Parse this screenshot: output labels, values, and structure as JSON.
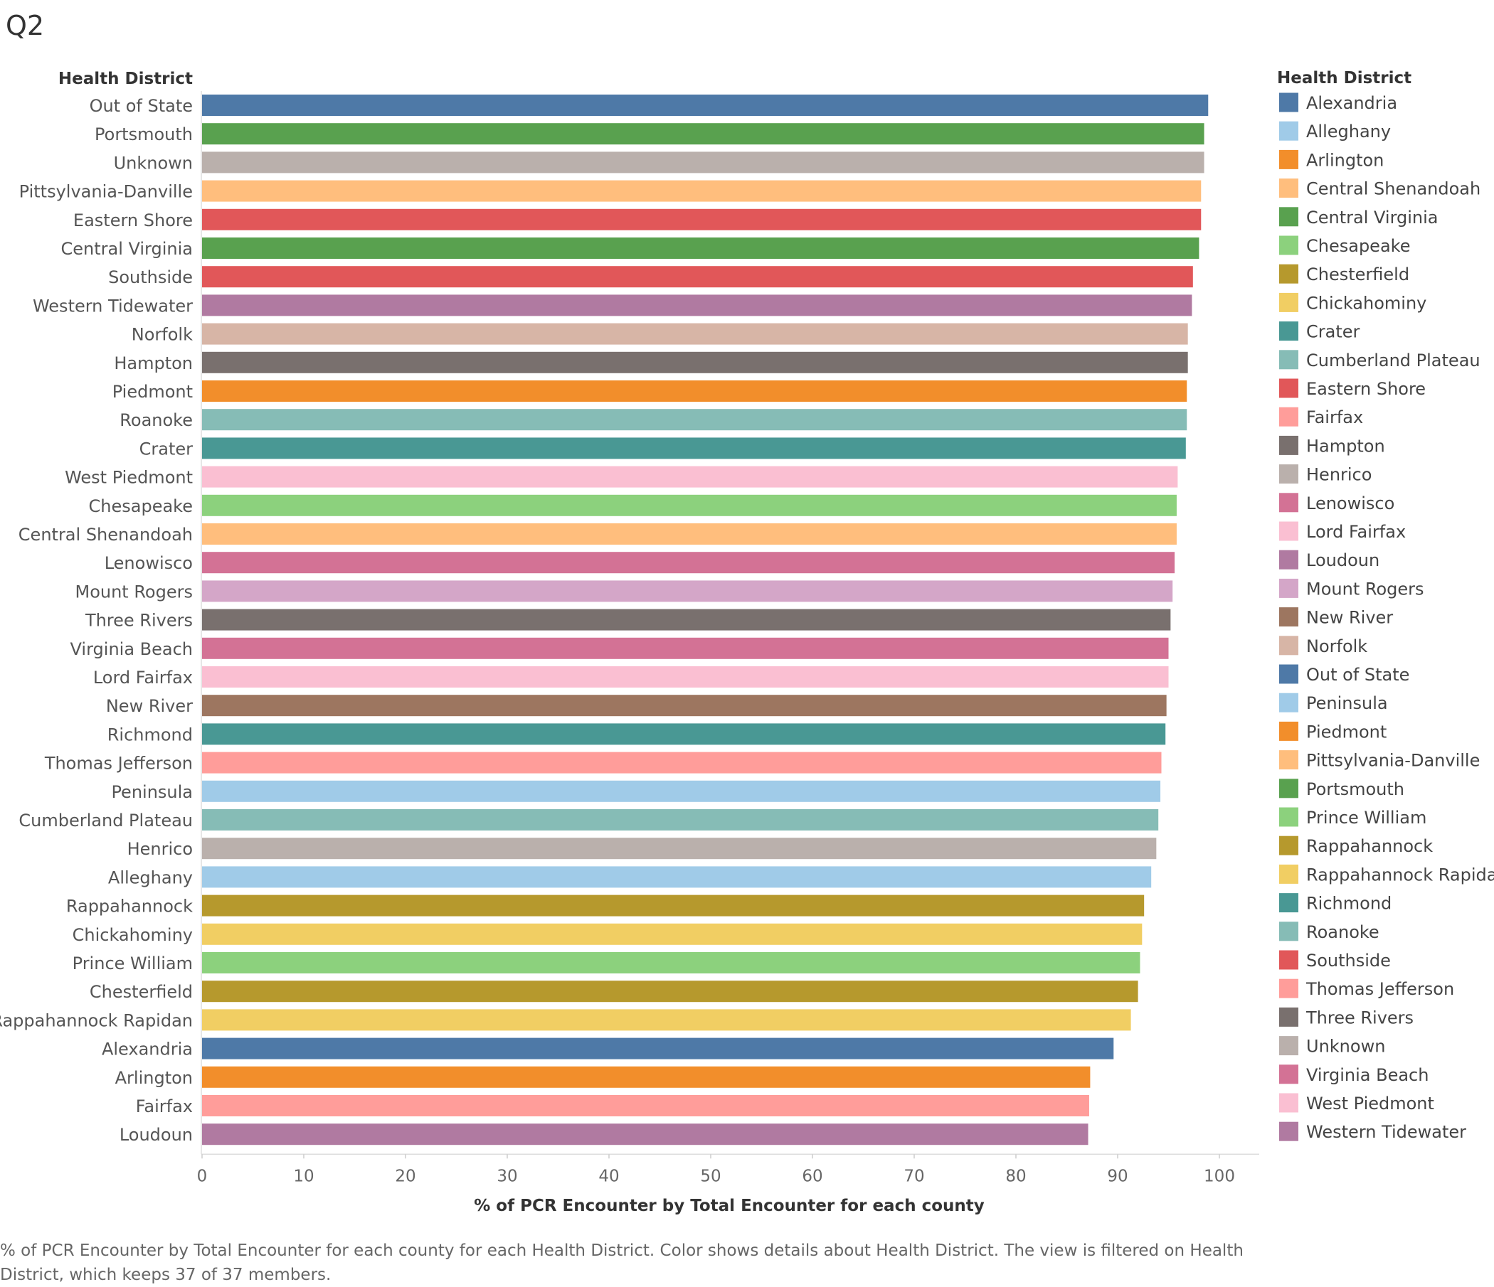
{
  "sheet": {
    "title": "Q2",
    "caption": "% of PCR Encounter by Total Encounter for each county for each Health District.  Color shows details about Health District. The view is filtered on Health District, which keeps 37 of 37 members."
  },
  "legend": {
    "title": "Health District",
    "items": [
      {
        "label": "Alexandria",
        "color": "#4e79a7"
      },
      {
        "label": "Alleghany",
        "color": "#a0cbe8"
      },
      {
        "label": "Arlington",
        "color": "#f28e2b"
      },
      {
        "label": "Central Shenandoah",
        "color": "#ffbe7d"
      },
      {
        "label": "Central Virginia",
        "color": "#59a14f"
      },
      {
        "label": "Chesapeake",
        "color": "#8cd17d"
      },
      {
        "label": "Chesterfield",
        "color": "#b6992d"
      },
      {
        "label": "Chickahominy",
        "color": "#f1ce63"
      },
      {
        "label": "Crater",
        "color": "#499894"
      },
      {
        "label": "Cumberland Plateau",
        "color": "#86bcb6"
      },
      {
        "label": "Eastern Shore",
        "color": "#e15759"
      },
      {
        "label": "Fairfax",
        "color": "#ff9d9a"
      },
      {
        "label": "Hampton",
        "color": "#79706e"
      },
      {
        "label": "Henrico",
        "color": "#bab0ac"
      },
      {
        "label": "Lenowisco",
        "color": "#d37295"
      },
      {
        "label": "Lord Fairfax",
        "color": "#fabfd2"
      },
      {
        "label": "Loudoun",
        "color": "#b07aa1"
      },
      {
        "label": "Mount Rogers",
        "color": "#d4a6c8"
      },
      {
        "label": "New River",
        "color": "#9d7660"
      },
      {
        "label": "Norfolk",
        "color": "#d7b5a6"
      },
      {
        "label": "Out of State",
        "color": "#4e79a7"
      },
      {
        "label": "Peninsula",
        "color": "#a0cbe8"
      },
      {
        "label": "Piedmont",
        "color": "#f28e2b"
      },
      {
        "label": "Pittsylvania-Danville",
        "color": "#ffbe7d"
      },
      {
        "label": "Portsmouth",
        "color": "#59a14f"
      },
      {
        "label": "Prince William",
        "color": "#8cd17d"
      },
      {
        "label": "Rappahannock",
        "color": "#b6992d"
      },
      {
        "label": "Rappahannock Rapidan",
        "color": "#f1ce63"
      },
      {
        "label": "Richmond",
        "color": "#499894"
      },
      {
        "label": "Roanoke",
        "color": "#86bcb6"
      },
      {
        "label": "Southside",
        "color": "#e15759"
      },
      {
        "label": "Thomas Jefferson",
        "color": "#ff9d9a"
      },
      {
        "label": "Three Rivers",
        "color": "#79706e"
      },
      {
        "label": "Unknown",
        "color": "#bab0ac"
      },
      {
        "label": "Virginia Beach",
        "color": "#d37295"
      },
      {
        "label": "West Piedmont",
        "color": "#fabfd2"
      },
      {
        "label": "Western Tidewater",
        "color": "#b07aa1"
      }
    ]
  },
  "chart_data": {
    "type": "bar",
    "orientation": "horizontal",
    "row_header": "Health District",
    "xlabel": "% of PCR Encounter by Total Encounter for each county",
    "xlim": [
      0,
      100
    ],
    "xticks": [
      0,
      10,
      20,
      30,
      40,
      50,
      60,
      70,
      80,
      90,
      100
    ],
    "grid": false,
    "legend_position": "right",
    "categories": [
      "Out of State",
      "Portsmouth",
      "Unknown",
      "Pittsylvania-Danville",
      "Eastern Shore",
      "Central Virginia",
      "Southside",
      "Western Tidewater",
      "Norfolk",
      "Hampton",
      "Piedmont",
      "Roanoke",
      "Crater",
      "West Piedmont",
      "Chesapeake",
      "Central Shenandoah",
      "Lenowisco",
      "Mount Rogers",
      "Three Rivers",
      "Virginia Beach",
      "Lord Fairfax",
      "New River",
      "Richmond",
      "Thomas Jefferson",
      "Peninsula",
      "Cumberland Plateau",
      "Henrico",
      "Alleghany",
      "Rappahannock",
      "Chickahominy",
      "Prince William",
      "Chesterfield",
      "Rappahannock Rapidan",
      "Alexandria",
      "Arlington",
      "Fairfax",
      "Loudoun"
    ],
    "values": [
      98.9,
      98.5,
      98.5,
      98.2,
      98.2,
      98.0,
      97.4,
      97.3,
      96.9,
      96.9,
      96.8,
      96.8,
      96.7,
      95.9,
      95.8,
      95.8,
      95.6,
      95.4,
      95.2,
      95.0,
      95.0,
      94.8,
      94.7,
      94.3,
      94.2,
      94.0,
      93.8,
      93.3,
      92.6,
      92.4,
      92.2,
      92.0,
      91.3,
      89.6,
      87.3,
      87.2,
      87.1
    ],
    "colors": [
      "#4e79a7",
      "#59a14f",
      "#bab0ac",
      "#ffbe7d",
      "#e15759",
      "#59a14f",
      "#e15759",
      "#b07aa1",
      "#d7b5a6",
      "#79706e",
      "#f28e2b",
      "#86bcb6",
      "#499894",
      "#fabfd2",
      "#8cd17d",
      "#ffbe7d",
      "#d37295",
      "#d4a6c8",
      "#79706e",
      "#d37295",
      "#fabfd2",
      "#9d7660",
      "#499894",
      "#ff9d9a",
      "#a0cbe8",
      "#86bcb6",
      "#bab0ac",
      "#a0cbe8",
      "#b6992d",
      "#f1ce63",
      "#8cd17d",
      "#b6992d",
      "#f1ce63",
      "#4e79a7",
      "#f28e2b",
      "#ff9d9a",
      "#b07aa1"
    ]
  }
}
